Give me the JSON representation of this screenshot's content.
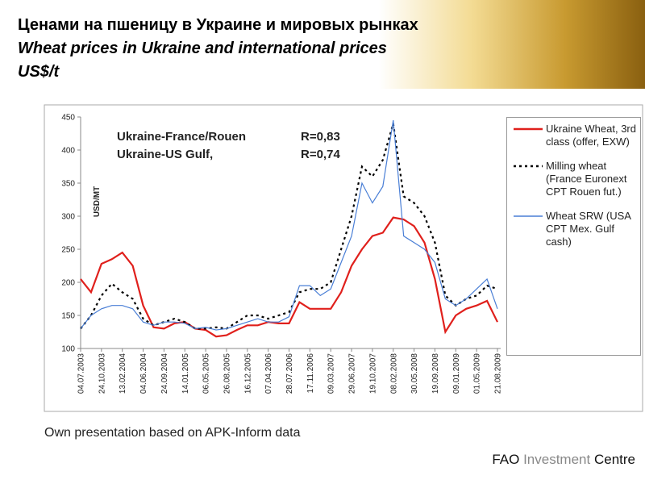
{
  "header": {
    "title": "Ценами на пшеницу в Украине и мировых рынках",
    "subtitle": "Wheat prices in Ukraine and international prices",
    "unit": "US$/t"
  },
  "chart_data": {
    "type": "line",
    "ylabel": "USD/MT",
    "annotations": [
      {
        "text": "Ukraine-France/Rouen",
        "r": "R=0,83"
      },
      {
        "text": "Ukraine-US Gulf,",
        "r": "R=0,74"
      }
    ],
    "categories": [
      "04.07.2003",
      null,
      "24.10.2003",
      null,
      "13.02.2004",
      null,
      "04.06.2004",
      null,
      "24.09.2004",
      null,
      "14.01.2005",
      null,
      "06.05.2005",
      null,
      "26.08.2005",
      null,
      "16.12.2005",
      null,
      "07.04.2006",
      null,
      "28.07.2006",
      null,
      "17.11.2006",
      null,
      "09.03.2007",
      null,
      "29.06.2007",
      null,
      "19.10.2007",
      null,
      "08.02.2008",
      null,
      "30.05.2008",
      null,
      "19.09.2008",
      null,
      "09.01.2009",
      null,
      "01.05.2009",
      null,
      "21.08.2009"
    ],
    "series": [
      {
        "name": "Ukraine Wheat, 3rd class (offer, EXW)",
        "color": "#e0201c",
        "dash": "solid",
        "values": [
          205,
          185,
          228,
          235,
          245,
          225,
          165,
          132,
          130,
          138,
          140,
          130,
          128,
          118,
          120,
          128,
          135,
          135,
          140,
          138,
          138,
          170,
          160,
          160,
          160,
          185,
          225,
          250,
          270,
          275,
          298,
          295,
          285,
          260,
          205,
          125,
          150,
          160,
          165,
          172,
          140
        ]
      },
      {
        "name": "Milling wheat (France Euronext CPT Rouen fut.)",
        "color": "#000000",
        "dash": "dotted",
        "values": [
          130,
          150,
          180,
          198,
          185,
          175,
          145,
          135,
          140,
          145,
          140,
          130,
          130,
          132,
          130,
          140,
          150,
          150,
          145,
          150,
          155,
          185,
          190,
          190,
          200,
          250,
          300,
          375,
          360,
          385,
          440,
          330,
          320,
          300,
          260,
          180,
          165,
          175,
          180,
          195,
          190
        ]
      },
      {
        "name": "Wheat SRW (USA CPT Mex. Gulf cash)",
        "color": "#4a7fd6",
        "dash": "solid",
        "values": [
          130,
          150,
          160,
          165,
          165,
          160,
          140,
          135,
          140,
          140,
          138,
          130,
          132,
          128,
          130,
          135,
          140,
          145,
          140,
          140,
          148,
          195,
          195,
          180,
          190,
          230,
          270,
          350,
          320,
          345,
          445,
          270,
          260,
          250,
          230,
          175,
          165,
          175,
          190,
          205,
          160
        ]
      }
    ],
    "ylim": [
      100,
      450
    ],
    "yticks": [
      100,
      150,
      200,
      250,
      300,
      350,
      400,
      450
    ]
  },
  "source": "Own presentation based on APK-Inform data",
  "footer": [
    "FAO",
    "Investment",
    "Centre"
  ]
}
